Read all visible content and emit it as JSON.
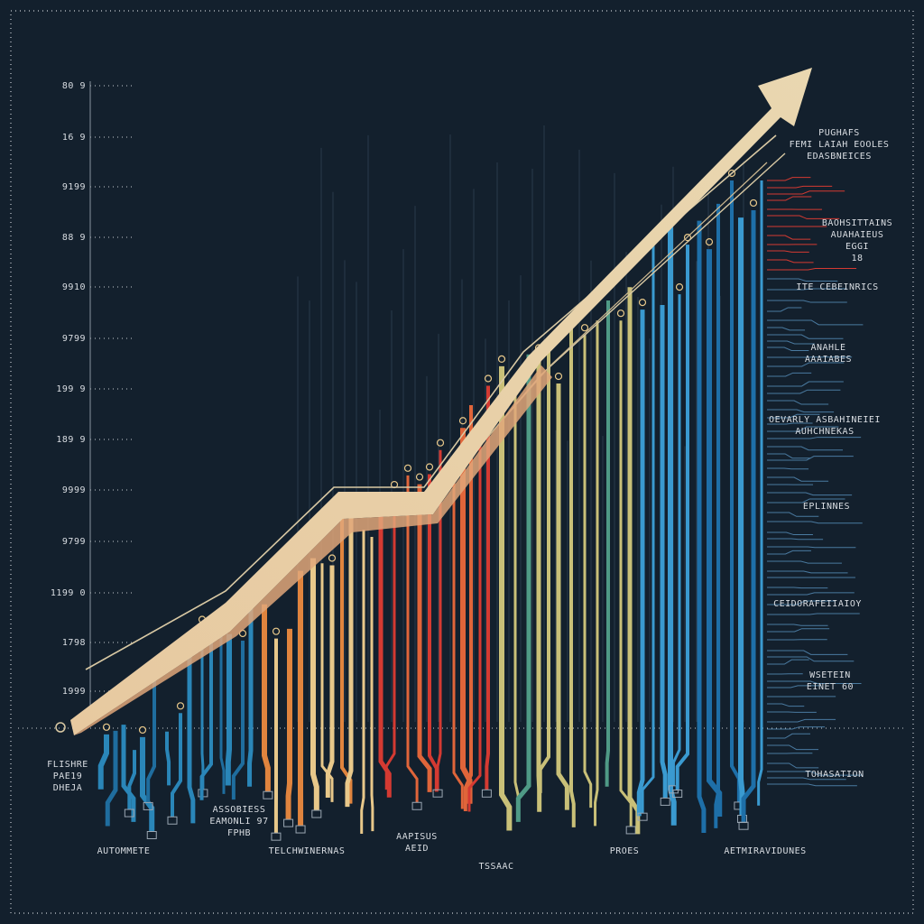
{
  "y_axis": {
    "labels": [
      "80 9",
      "16 9",
      "9199",
      "88 9",
      "9910",
      "9799",
      "199 9",
      "189 9",
      "9999",
      "9799",
      "1199 0",
      "1798",
      "1999"
    ]
  },
  "right_notes": [
    {
      "lines": [
        "PUGHAFS",
        "FEMI LAIAH EOOLES",
        "EDASBNEICES"
      ]
    },
    {
      "lines": [
        "BAOHSITTAINS",
        "AUAHAIEUS",
        "EGGI",
        "18"
      ]
    },
    {
      "lines": [
        "ITE CEBEINRICS"
      ]
    },
    {
      "lines": [
        "ANAHLE",
        "AAAIABES"
      ]
    },
    {
      "lines": [
        "OEVARLY ASBAHINEIEI",
        "AUHCHNEKAS"
      ]
    },
    {
      "lines": [
        "EPLINNES"
      ]
    },
    {
      "lines": [
        "CEIDORAFEIIAIOY"
      ]
    },
    {
      "lines": [
        "WSETEIN",
        "EINET 60"
      ]
    },
    {
      "lines": [
        "TOHASATION"
      ]
    }
  ],
  "left_note": {
    "lines": [
      "FLISHRE",
      "PAE19",
      "DHEJA"
    ]
  },
  "bottom_notes": [
    {
      "lines": [
        "AUTOMMETE"
      ]
    },
    {
      "lines": [
        "ASSOBIESS",
        "EAMONLI 97",
        "FPHB"
      ]
    },
    {
      "lines": [
        "TELCHWINERNAS"
      ]
    },
    {
      "lines": [
        "AAPISUS",
        "AEID"
      ]
    },
    {
      "lines": [
        "TSSAAC"
      ]
    },
    {
      "lines": [
        "PROES"
      ]
    },
    {
      "lines": [
        "AETMIRAVIDUNES"
      ]
    }
  ]
}
